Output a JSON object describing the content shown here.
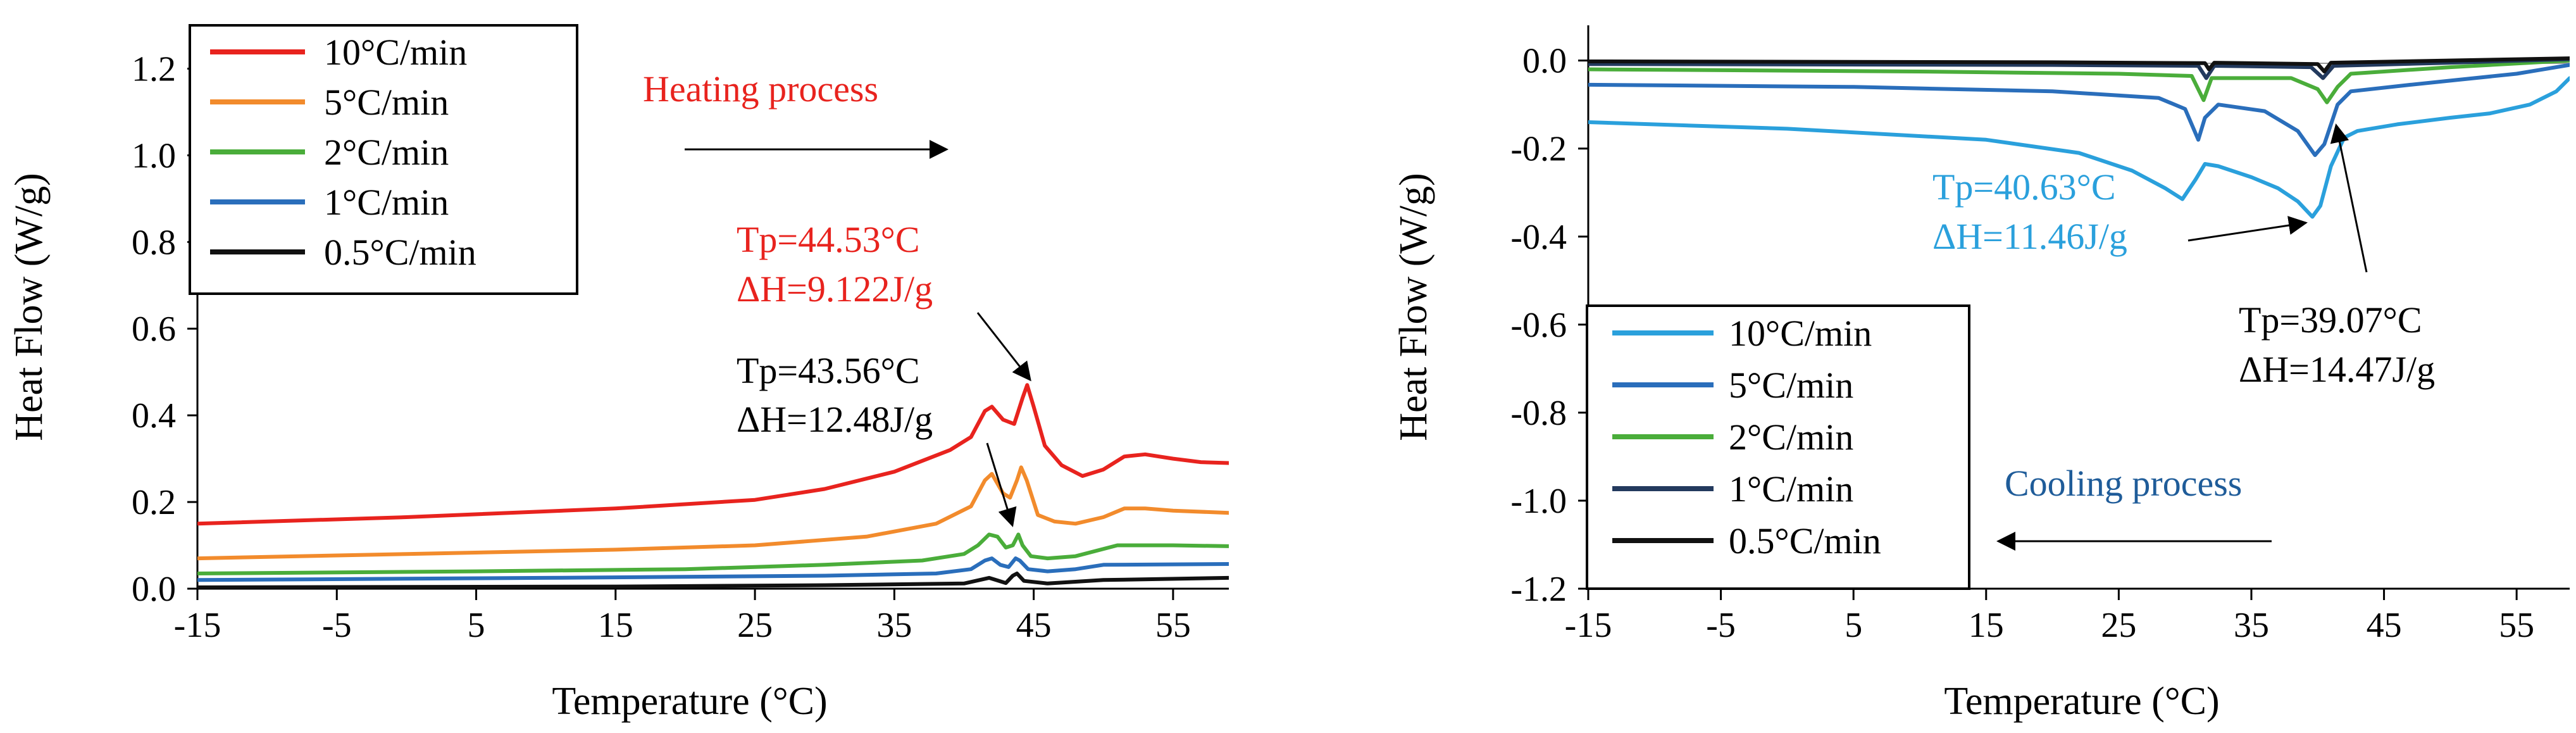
{
  "colors": {
    "red": "#e8231e",
    "orange": "#f28b2c",
    "green": "#4aad3a",
    "blue": "#2a6ebb",
    "black": "#111111",
    "lightblue": "#2aa0dc",
    "navy": "#233a5e",
    "cooling_text": "#1f5c99"
  },
  "chart_data": [
    {
      "type": "line",
      "id": "heating",
      "title": "",
      "xlabel": "Temperature (°C)",
      "ylabel": "Heat Flow (W/g)",
      "xlim": [
        -15,
        59
      ],
      "ylim": [
        0,
        1.3
      ],
      "x_ticks": [
        "-15",
        "-5",
        "5",
        "15",
        "25",
        "35",
        "45",
        "55"
      ],
      "y_ticks": [
        "0.0",
        "0.2",
        "0.4",
        "0.6",
        "0.8",
        "1.0",
        "1.2"
      ],
      "legend": [
        "10°C/min",
        "5°C/min",
        "2°C/min",
        "1°C/min",
        "0.5°C/min"
      ],
      "series": [
        {
          "name": "10°C/min",
          "color_key": "red",
          "points": [
            [
              -15,
              0.15
            ],
            [
              0,
              0.165
            ],
            [
              15,
              0.185
            ],
            [
              25,
              0.205
            ],
            [
              30,
              0.23
            ],
            [
              35,
              0.27
            ],
            [
              39,
              0.32
            ],
            [
              40.5,
              0.35
            ],
            [
              41.5,
              0.41
            ],
            [
              42,
              0.42
            ],
            [
              42.8,
              0.39
            ],
            [
              43.6,
              0.38
            ],
            [
              44.2,
              0.44
            ],
            [
              44.53,
              0.47
            ],
            [
              45,
              0.42
            ],
            [
              45.8,
              0.33
            ],
            [
              47,
              0.285
            ],
            [
              48.5,
              0.26
            ],
            [
              50,
              0.275
            ],
            [
              51.5,
              0.305
            ],
            [
              53,
              0.31
            ],
            [
              55,
              0.3
            ],
            [
              57,
              0.292
            ],
            [
              59,
              0.29
            ]
          ]
        },
        {
          "name": "5°C/min",
          "color_key": "orange",
          "points": [
            [
              -15,
              0.07
            ],
            [
              0,
              0.08
            ],
            [
              15,
              0.09
            ],
            [
              25,
              0.1
            ],
            [
              33,
              0.12
            ],
            [
              38,
              0.15
            ],
            [
              40.5,
              0.19
            ],
            [
              41.5,
              0.25
            ],
            [
              42,
              0.265
            ],
            [
              42.8,
              0.22
            ],
            [
              43.3,
              0.21
            ],
            [
              43.8,
              0.25
            ],
            [
              44.1,
              0.28
            ],
            [
              44.5,
              0.25
            ],
            [
              45.3,
              0.17
            ],
            [
              46.5,
              0.155
            ],
            [
              48,
              0.15
            ],
            [
              50,
              0.165
            ],
            [
              51.5,
              0.185
            ],
            [
              53,
              0.185
            ],
            [
              55,
              0.18
            ],
            [
              59,
              0.175
            ]
          ]
        },
        {
          "name": "2°C/min",
          "color_key": "green",
          "points": [
            [
              -15,
              0.035
            ],
            [
              5,
              0.04
            ],
            [
              20,
              0.045
            ],
            [
              30,
              0.055
            ],
            [
              37,
              0.065
            ],
            [
              40,
              0.08
            ],
            [
              41,
              0.1
            ],
            [
              41.8,
              0.125
            ],
            [
              42.4,
              0.12
            ],
            [
              43,
              0.095
            ],
            [
              43.5,
              0.1
            ],
            [
              43.9,
              0.125
            ],
            [
              44.2,
              0.1
            ],
            [
              44.8,
              0.075
            ],
            [
              46,
              0.07
            ],
            [
              48,
              0.075
            ],
            [
              51,
              0.1
            ],
            [
              55,
              0.1
            ],
            [
              59,
              0.098
            ]
          ]
        },
        {
          "name": "1°C/min",
          "color_key": "blue",
          "points": [
            [
              -15,
              0.02
            ],
            [
              10,
              0.025
            ],
            [
              30,
              0.03
            ],
            [
              38,
              0.035
            ],
            [
              40.5,
              0.045
            ],
            [
              41.5,
              0.065
            ],
            [
              42,
              0.07
            ],
            [
              42.6,
              0.055
            ],
            [
              43.2,
              0.05
            ],
            [
              43.7,
              0.07
            ],
            [
              44,
              0.065
            ],
            [
              44.6,
              0.045
            ],
            [
              46,
              0.04
            ],
            [
              48,
              0.045
            ],
            [
              50,
              0.055
            ],
            [
              59,
              0.057
            ]
          ]
        },
        {
          "name": "0.5°C/min",
          "color_key": "black",
          "points": [
            [
              -15,
              0.003
            ],
            [
              15,
              0.005
            ],
            [
              30,
              0.008
            ],
            [
              40,
              0.012
            ],
            [
              41.8,
              0.025
            ],
            [
              42.3,
              0.02
            ],
            [
              43,
              0.013
            ],
            [
              43.5,
              0.03
            ],
            [
              43.8,
              0.035
            ],
            [
              44.3,
              0.018
            ],
            [
              46,
              0.012
            ],
            [
              50,
              0.02
            ],
            [
              59,
              0.025
            ]
          ]
        }
      ],
      "annotations": {
        "process": "Heating process",
        "peak1_tp": "Tp=44.53°C",
        "peak1_dh": "ΔH=9.122J/g",
        "peak2_tp": "Tp=43.56°C",
        "peak2_dh": "ΔH=12.48J/g"
      }
    },
    {
      "type": "line",
      "id": "cooling",
      "title": "",
      "xlabel": "Temperature (°C)",
      "ylabel": "Heat Flow (W/g)",
      "xlim": [
        -15,
        59
      ],
      "ylim": [
        -1.2,
        0.08
      ],
      "x_ticks": [
        "-15",
        "-5",
        "5",
        "15",
        "25",
        "35",
        "45",
        "55"
      ],
      "y_ticks": [
        "0.0",
        "-0.2",
        "-0.4",
        "-0.6",
        "-0.8",
        "-1.0",
        "-1.2"
      ],
      "legend": [
        "10°C/min",
        "5°C/min",
        "2°C/min",
        "1°C/min",
        "0.5°C/min"
      ],
      "series": [
        {
          "name": "10°C/min",
          "color_key": "lightblue",
          "points": [
            [
              -15,
              -0.14
            ],
            [
              0,
              -0.155
            ],
            [
              15,
              -0.18
            ],
            [
              22,
              -0.21
            ],
            [
              26,
              -0.25
            ],
            [
              28.5,
              -0.29
            ],
            [
              29.8,
              -0.315
            ],
            [
              30.8,
              -0.27
            ],
            [
              31.5,
              -0.235
            ],
            [
              32.5,
              -0.24
            ],
            [
              35,
              -0.265
            ],
            [
              37,
              -0.29
            ],
            [
              38.5,
              -0.32
            ],
            [
              39.6,
              -0.355
            ],
            [
              40.2,
              -0.33
            ],
            [
              41,
              -0.24
            ],
            [
              42,
              -0.175
            ],
            [
              43,
              -0.16
            ],
            [
              46,
              -0.145
            ],
            [
              50,
              -0.13
            ],
            [
              53,
              -0.12
            ],
            [
              56,
              -0.1
            ],
            [
              58,
              -0.07
            ],
            [
              59,
              -0.04
            ]
          ]
        },
        {
          "name": "5°C/min",
          "color_key": "blue",
          "points": [
            [
              -15,
              -0.055
            ],
            [
              5,
              -0.06
            ],
            [
              20,
              -0.07
            ],
            [
              28,
              -0.085
            ],
            [
              30,
              -0.11
            ],
            [
              31,
              -0.18
            ],
            [
              31.5,
              -0.13
            ],
            [
              32.5,
              -0.1
            ],
            [
              36,
              -0.115
            ],
            [
              38.5,
              -0.16
            ],
            [
              39.8,
              -0.215
            ],
            [
              40.5,
              -0.19
            ],
            [
              41.5,
              -0.1
            ],
            [
              42.5,
              -0.07
            ],
            [
              47,
              -0.055
            ],
            [
              55,
              -0.03
            ],
            [
              59,
              -0.01
            ]
          ]
        },
        {
          "name": "2°C/min",
          "color_key": "green",
          "points": [
            [
              -15,
              -0.02
            ],
            [
              10,
              -0.025
            ],
            [
              25,
              -0.03
            ],
            [
              30.5,
              -0.035
            ],
            [
              31.4,
              -0.09
            ],
            [
              32,
              -0.04
            ],
            [
              38,
              -0.04
            ],
            [
              40,
              -0.065
            ],
            [
              40.7,
              -0.095
            ],
            [
              41.5,
              -0.06
            ],
            [
              42.5,
              -0.03
            ],
            [
              50,
              -0.015
            ],
            [
              59,
              0.0
            ]
          ]
        },
        {
          "name": "1°C/min",
          "color_key": "navy",
          "points": [
            [
              -15,
              -0.008
            ],
            [
              20,
              -0.01
            ],
            [
              31,
              -0.012
            ],
            [
              31.6,
              -0.04
            ],
            [
              32.2,
              -0.012
            ],
            [
              39.5,
              -0.015
            ],
            [
              40.4,
              -0.04
            ],
            [
              41.2,
              -0.012
            ],
            [
              50,
              -0.005
            ],
            [
              59,
              0.003
            ]
          ]
        },
        {
          "name": "0.5°C/min",
          "color_key": "black",
          "points": [
            [
              -15,
              -0.002
            ],
            [
              20,
              -0.004
            ],
            [
              31.5,
              -0.006
            ],
            [
              31.8,
              -0.02
            ],
            [
              32.2,
              -0.005
            ],
            [
              40,
              -0.008
            ],
            [
              40.5,
              -0.025
            ],
            [
              41,
              -0.005
            ],
            [
              59,
              0.005
            ]
          ]
        }
      ],
      "annotations": {
        "process": "Cooling process",
        "peak1_tp": "Tp=40.63°C",
        "peak1_dh": "ΔH=11.46J/g",
        "peak2_tp": "Tp=39.07°C",
        "peak2_dh": "ΔH=14.47J/g"
      }
    }
  ]
}
